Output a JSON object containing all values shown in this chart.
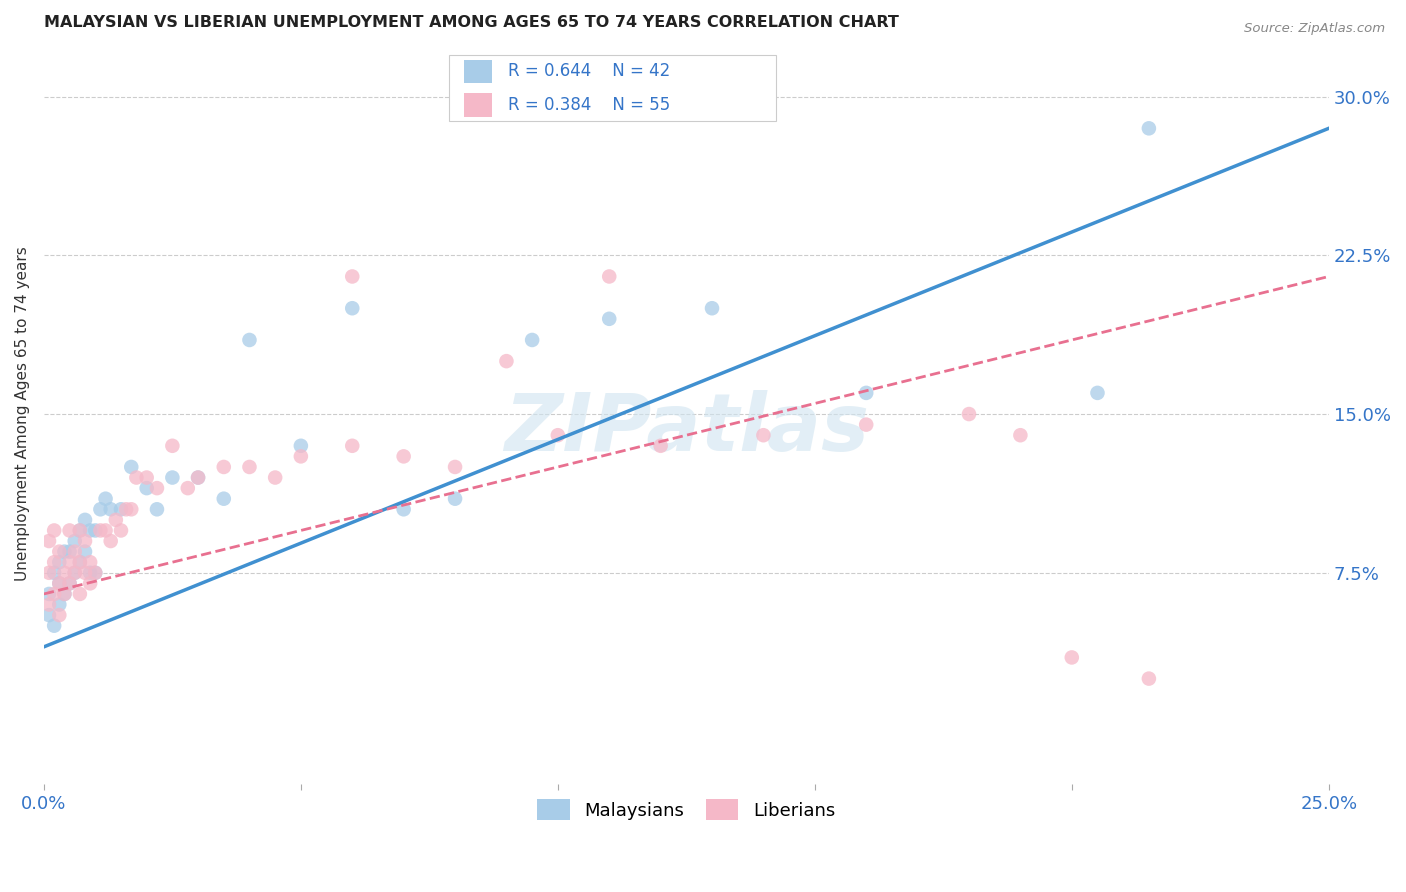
{
  "title": "MALAYSIAN VS LIBERIAN UNEMPLOYMENT AMONG AGES 65 TO 74 YEARS CORRELATION CHART",
  "source": "Source: ZipAtlas.com",
  "ylabel": "Unemployment Among Ages 65 to 74 years",
  "xlim": [
    0.0,
    0.25
  ],
  "ylim": [
    -0.025,
    0.325
  ],
  "xticks": [
    0.0,
    0.05,
    0.1,
    0.15,
    0.2,
    0.25
  ],
  "xticklabels": [
    "0.0%",
    "",
    "",
    "",
    "",
    "25.0%"
  ],
  "yticks_right": [
    0.075,
    0.15,
    0.225,
    0.3
  ],
  "yticklabels_right": [
    "7.5%",
    "15.0%",
    "22.5%",
    "30.0%"
  ],
  "legend_r_blue": "R = 0.644",
  "legend_n_blue": "N = 42",
  "legend_r_pink": "R = 0.384",
  "legend_n_pink": "N = 55",
  "legend_label_blue": "Malaysians",
  "legend_label_pink": "Liberians",
  "blue_color": "#a8cce8",
  "pink_color": "#f5b8c8",
  "blue_line_color": "#4090d0",
  "pink_line_color": "#e87090",
  "text_color_blue": "#3575c8",
  "text_color_title": "#222222",
  "watermark_color": "#d0e4f0",
  "blue_line_x": [
    0.0,
    0.25
  ],
  "blue_line_y": [
    0.04,
    0.285
  ],
  "pink_line_x": [
    0.0,
    0.25
  ],
  "pink_line_y": [
    0.065,
    0.215
  ],
  "blue_scatter_x": [
    0.001,
    0.001,
    0.002,
    0.002,
    0.003,
    0.003,
    0.003,
    0.004,
    0.004,
    0.005,
    0.005,
    0.006,
    0.006,
    0.007,
    0.007,
    0.008,
    0.008,
    0.009,
    0.009,
    0.01,
    0.01,
    0.011,
    0.012,
    0.013,
    0.015,
    0.017,
    0.02,
    0.022,
    0.025,
    0.03,
    0.035,
    0.04,
    0.05,
    0.06,
    0.07,
    0.08,
    0.095,
    0.11,
    0.13,
    0.16,
    0.205,
    0.215
  ],
  "blue_scatter_y": [
    0.055,
    0.065,
    0.05,
    0.075,
    0.06,
    0.07,
    0.08,
    0.065,
    0.085,
    0.07,
    0.085,
    0.075,
    0.09,
    0.08,
    0.095,
    0.085,
    0.1,
    0.075,
    0.095,
    0.075,
    0.095,
    0.105,
    0.11,
    0.105,
    0.105,
    0.125,
    0.115,
    0.105,
    0.12,
    0.12,
    0.11,
    0.185,
    0.135,
    0.2,
    0.105,
    0.11,
    0.185,
    0.195,
    0.2,
    0.16,
    0.16,
    0.285
  ],
  "pink_scatter_x": [
    0.001,
    0.001,
    0.001,
    0.002,
    0.002,
    0.002,
    0.003,
    0.003,
    0.003,
    0.004,
    0.004,
    0.005,
    0.005,
    0.005,
    0.006,
    0.006,
    0.007,
    0.007,
    0.007,
    0.008,
    0.008,
    0.009,
    0.009,
    0.01,
    0.011,
    0.012,
    0.013,
    0.014,
    0.015,
    0.016,
    0.017,
    0.018,
    0.02,
    0.022,
    0.025,
    0.028,
    0.03,
    0.035,
    0.04,
    0.045,
    0.05,
    0.06,
    0.07,
    0.08,
    0.1,
    0.12,
    0.14,
    0.16,
    0.18,
    0.19,
    0.06,
    0.09,
    0.11,
    0.2,
    0.215
  ],
  "pink_scatter_y": [
    0.06,
    0.075,
    0.09,
    0.065,
    0.08,
    0.095,
    0.055,
    0.07,
    0.085,
    0.065,
    0.075,
    0.07,
    0.08,
    0.095,
    0.075,
    0.085,
    0.065,
    0.08,
    0.095,
    0.075,
    0.09,
    0.08,
    0.07,
    0.075,
    0.095,
    0.095,
    0.09,
    0.1,
    0.095,
    0.105,
    0.105,
    0.12,
    0.12,
    0.115,
    0.135,
    0.115,
    0.12,
    0.125,
    0.125,
    0.12,
    0.13,
    0.135,
    0.13,
    0.125,
    0.14,
    0.135,
    0.14,
    0.145,
    0.15,
    0.14,
    0.215,
    0.175,
    0.215,
    0.035,
    0.025
  ],
  "grid_color": "#cccccc",
  "background_color": "#ffffff"
}
